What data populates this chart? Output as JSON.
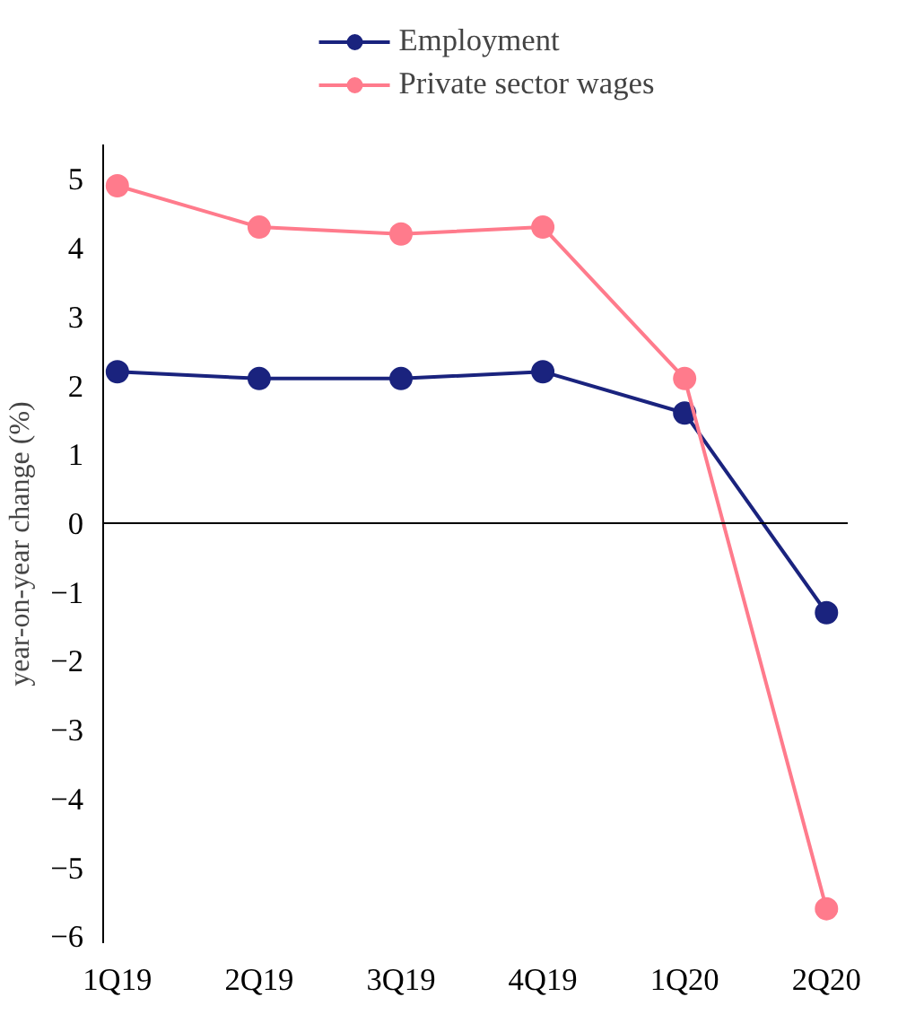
{
  "chart_data": {
    "type": "line",
    "ylabel": "year-on-year change (%)",
    "categories": [
      "1Q19",
      "2Q19",
      "3Q19",
      "4Q19",
      "1Q20",
      "2Q20"
    ],
    "series": [
      {
        "name": "Employment",
        "color": "#1a237e",
        "values": [
          2.2,
          2.1,
          2.1,
          2.2,
          1.6,
          -1.3
        ]
      },
      {
        "name": "Private sector wages",
        "color": "#ff7b8c",
        "values": [
          4.9,
          4.3,
          4.2,
          4.3,
          2.1,
          -5.6
        ]
      }
    ],
    "ylim": [
      -6.1,
      5.5
    ],
    "yticks": [
      {
        "value": -6,
        "label": "−6"
      },
      {
        "value": -5,
        "label": "−5"
      },
      {
        "value": -4,
        "label": "−4"
      },
      {
        "value": -3,
        "label": "−3"
      },
      {
        "value": -2,
        "label": "−2"
      },
      {
        "value": -1,
        "label": "−1"
      },
      0,
      1,
      2,
      3,
      4,
      5
    ],
    "ref_lines": [
      {
        "axis": "y",
        "value": 0,
        "color": "#000000"
      }
    ],
    "marker": "circle",
    "line_style": "solid",
    "grid": false,
    "legend": "top"
  }
}
